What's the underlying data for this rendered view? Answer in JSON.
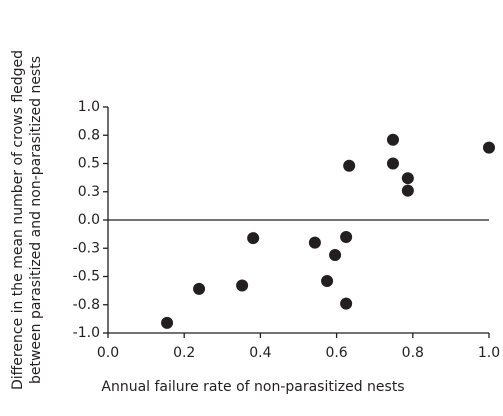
{
  "chart_data": {
    "type": "scatter",
    "xlabel": "Annual failure rate of non-parasitized nests",
    "ylabel": [
      "Difference in the mean number of crows fledged",
      "between parasitized and non-parasitized nests"
    ],
    "x": [
      0.155,
      0.239,
      0.352,
      0.381,
      0.543,
      0.575,
      0.596,
      0.625,
      0.625,
      0.633,
      0.748,
      0.748,
      0.787,
      0.787,
      1.0
    ],
    "values": [
      -0.91,
      -0.61,
      -0.58,
      -0.16,
      -0.2,
      -0.54,
      -0.31,
      -0.15,
      -0.74,
      0.48,
      0.71,
      0.5,
      0.37,
      0.26,
      0.64
    ],
    "color": "#231f20",
    "xlim": [
      0,
      1
    ],
    "xticks": [
      {
        "value": 0,
        "label": "0.0"
      },
      0.2,
      0.4,
      0.6,
      0.8,
      {
        "value": 1,
        "label": "1.0"
      }
    ],
    "ylim": [
      -1,
      1
    ],
    "yticks": [
      {
        "value": 1,
        "label": "1.0"
      },
      {
        "value": 0.75,
        "label": "0.8"
      },
      {
        "value": 0.5,
        "label": "0.5"
      },
      {
        "value": 0.25,
        "label": "0.3"
      },
      {
        "value": 0,
        "label": "0.0"
      },
      {
        "value": -0.25,
        "label": "-0.3"
      },
      {
        "value": -0.5,
        "label": "-0.5"
      },
      {
        "value": -0.75,
        "label": "-0.8"
      },
      {
        "value": -1,
        "label": "-1.0"
      }
    ],
    "hline": 0
  }
}
